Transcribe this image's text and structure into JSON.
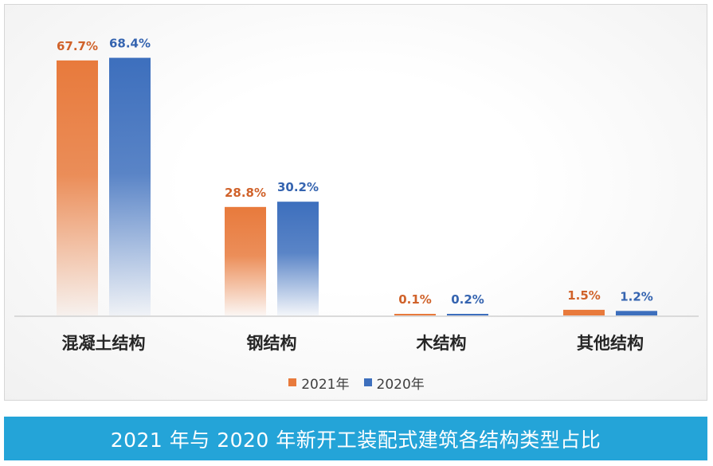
{
  "chart_data": {
    "type": "bar",
    "categories": [
      "混凝土结构",
      "钢结构",
      "木结构",
      "其他结构"
    ],
    "series": [
      {
        "name": "2021年",
        "values": [
          67.7,
          28.8,
          0.1,
          1.5
        ],
        "labels": [
          "67.7%",
          "28.8%",
          "0.1%",
          "1.5%"
        ],
        "color": "#e87a3c"
      },
      {
        "name": "2020年",
        "values": [
          68.4,
          30.2,
          0.2,
          1.2
        ],
        "labels": [
          "68.4%",
          "30.2%",
          "0.2%",
          "1.2%"
        ],
        "color": "#3d6fbd"
      }
    ],
    "ylim": [
      0,
      70
    ],
    "grid": false,
    "legend_position": "bottom"
  },
  "title": "2021 年与 2020 年新开工装配式建筑各结构类型占比",
  "colors": {
    "title_bar": "#24a4d8",
    "axis": "#d0d0d0"
  }
}
